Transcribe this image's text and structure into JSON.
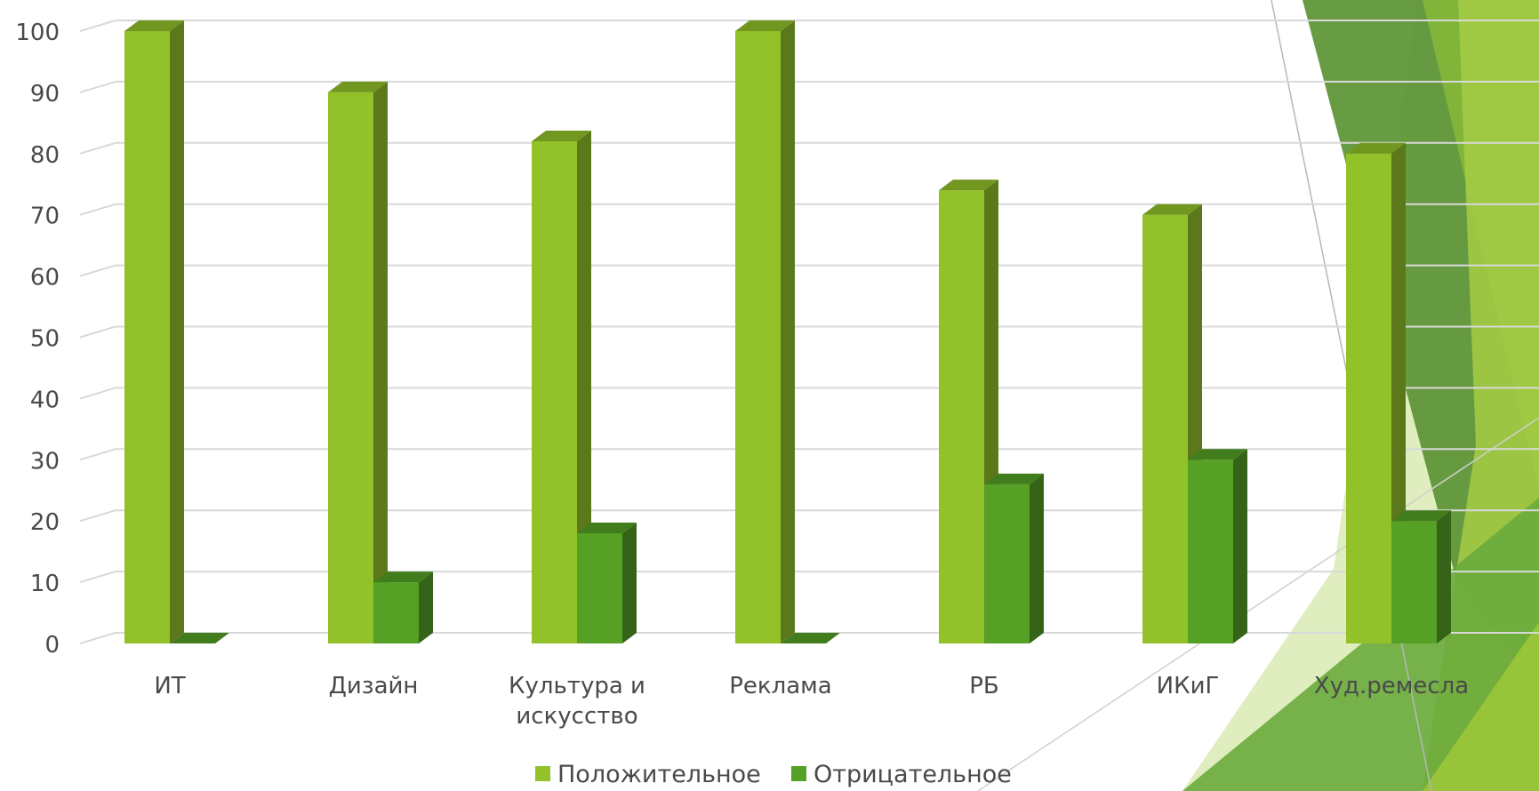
{
  "chart_data": {
    "type": "bar",
    "categories": [
      "ИТ",
      "Дизайн",
      "Культура и искусство",
      "Реклама",
      "РБ",
      "ИКиГ",
      "Худ.ремесла"
    ],
    "category_lines": [
      [
        "ИТ"
      ],
      [
        "Дизайн"
      ],
      [
        "Культура и",
        "искусство"
      ],
      [
        "Реклама"
      ],
      [
        "РБ"
      ],
      [
        "ИКиГ"
      ],
      [
        "Худ.ремесла"
      ]
    ],
    "series": [
      {
        "name": "Положительное",
        "values": [
          100,
          90,
          82,
          100,
          74,
          70,
          80
        ],
        "color": "#92c12a"
      },
      {
        "name": "Отрицательное",
        "values": [
          0,
          10,
          18,
          0,
          26,
          30,
          20
        ],
        "color": "#55a025"
      }
    ],
    "yticks": [
      "0",
      "10",
      "20",
      "30",
      "40",
      "50",
      "60",
      "70",
      "80",
      "90",
      "100"
    ],
    "ylim": [
      0,
      100
    ],
    "grid": true,
    "legend_position": "bottom",
    "three_d": true
  }
}
